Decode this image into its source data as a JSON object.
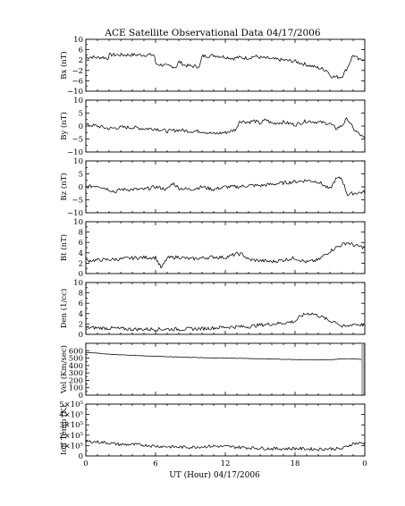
{
  "chart_data": {
    "type": "line",
    "title": "ACE Satellite Observational Data   04/17/2006",
    "xlabel": "UT (Hour)   04/17/2006",
    "x_ticks": [
      "0",
      "6",
      "12",
      "18",
      "0"
    ],
    "x_values": [
      0,
      6,
      12,
      18,
      24
    ],
    "xlim": [
      0,
      24
    ],
    "panels": [
      {
        "key": "bx",
        "ylabel": "Bx (nT)",
        "ylim": [
          -10,
          10
        ],
        "yticks": [
          -10,
          -6,
          -2,
          2,
          6,
          10
        ],
        "ytick_labels": [
          "−10",
          "−6",
          "−2",
          "2",
          "6",
          "10"
        ],
        "x": [
          0,
          0.5,
          1,
          1.5,
          1.9,
          2.0,
          3,
          4,
          5,
          5.9,
          6.0,
          6.5,
          7,
          7.8,
          8,
          8.5,
          9,
          9.8,
          10,
          11,
          12,
          12.8,
          13,
          14,
          14.5,
          15,
          16,
          17,
          18,
          19,
          20,
          20.8,
          21,
          21.4,
          22,
          22.5,
          23,
          23.5,
          24
        ],
        "y": [
          3,
          3.2,
          2.9,
          3.1,
          2.5,
          4,
          4,
          4,
          4,
          4,
          0.5,
          0.2,
          -0.3,
          -0.6,
          1.5,
          0,
          -0.3,
          -0.5,
          3.5,
          3.8,
          3.2,
          2.6,
          3,
          2.8,
          3.5,
          3,
          2.4,
          2,
          1.5,
          0.2,
          -1,
          -2,
          -4,
          -4.5,
          -4.5,
          -1,
          4,
          2,
          2.5
        ]
      },
      {
        "key": "by",
        "ylabel": "By (nT)",
        "ylim": [
          -10,
          10
        ],
        "yticks": [
          -10,
          -5,
          0,
          5,
          10
        ],
        "ytick_labels": [
          "−10",
          "−5",
          "0",
          "5",
          "10"
        ],
        "x": [
          0,
          1,
          2,
          3,
          4,
          5,
          6,
          7,
          8,
          9,
          10,
          10.5,
          11,
          12,
          12.5,
          13,
          13.2,
          14,
          14.5,
          15,
          15.5,
          16,
          17,
          18,
          19,
          20,
          21,
          21.5,
          22,
          22.5,
          23,
          23.5,
          24
        ],
        "y": [
          0.5,
          0,
          -1,
          -0.5,
          -0.5,
          -1,
          -1,
          -2,
          -1.5,
          -2,
          -2,
          -2.5,
          -3,
          -2.5,
          -2,
          -1,
          2,
          1.5,
          2,
          1,
          2.5,
          1,
          1.5,
          0.5,
          2,
          1.5,
          1,
          -1,
          0,
          3,
          -1,
          -3,
          -5
        ]
      },
      {
        "key": "bz",
        "ylabel": "Bz (nT)",
        "ylim": [
          -10,
          10
        ],
        "yticks": [
          -10,
          -5,
          0,
          5,
          10
        ],
        "ytick_labels": [
          "−10",
          "−5",
          "0",
          "5",
          "10"
        ],
        "x": [
          0,
          1,
          2,
          2.5,
          3,
          4,
          5,
          6,
          7,
          7.5,
          8,
          9,
          10,
          11,
          12,
          13,
          14,
          15,
          16,
          17,
          18,
          19,
          20,
          21,
          21.5,
          22,
          22.5,
          23,
          24
        ],
        "y": [
          0,
          0.5,
          -1,
          -2,
          -1,
          -1,
          -1,
          0,
          -1,
          1.5,
          -0.5,
          -1,
          0,
          -1,
          0,
          0,
          0.5,
          0.5,
          1,
          1.5,
          2,
          2.5,
          2,
          -1,
          3,
          3.5,
          -3,
          -2.5,
          -2
        ]
      },
      {
        "key": "bt",
        "ylabel": "Bt (nT)",
        "ylim": [
          0,
          10
        ],
        "yticks": [
          0,
          2,
          4,
          6,
          8,
          10
        ],
        "ytick_labels": [
          "0",
          "2",
          "4",
          "6",
          "8",
          "10"
        ],
        "x": [
          0,
          1,
          2,
          3,
          4,
          5,
          6,
          6.5,
          7,
          8,
          9,
          10,
          11,
          12,
          13,
          13.5,
          14,
          15,
          16,
          17,
          18,
          19,
          20,
          20.5,
          21,
          21.5,
          22,
          22.5,
          23,
          24
        ],
        "y": [
          2.5,
          2.6,
          2.7,
          2.8,
          3,
          3.1,
          3.1,
          1,
          3,
          3.2,
          2.8,
          3,
          3.2,
          3.1,
          3.8,
          3.7,
          2.7,
          2.5,
          2.3,
          2.6,
          3,
          2.2,
          2.6,
          3.5,
          4.3,
          5,
          5.5,
          6,
          5.5,
          5
        ]
      },
      {
        "key": "den",
        "ylabel": "Den (1/cc)",
        "ylim": [
          0,
          10
        ],
        "yticks": [
          0,
          2,
          4,
          6,
          8,
          10
        ],
        "ytick_labels": [
          "0",
          "2",
          "4",
          "6",
          "8",
          "10"
        ],
        "x": [
          0,
          2,
          4,
          6,
          8,
          10,
          12,
          14,
          15,
          16,
          17,
          18,
          18.5,
          19,
          19.5,
          20,
          20.5,
          21,
          21.5,
          22,
          22.5,
          23,
          24
        ],
        "y": [
          1.3,
          1.2,
          1,
          1,
          1,
          1.1,
          1.4,
          1.5,
          1.8,
          2,
          2.2,
          2.5,
          3.5,
          4,
          4,
          3.6,
          3.2,
          2.5,
          2.5,
          1.5,
          1.5,
          2,
          1.8
        ]
      },
      {
        "key": "vel",
        "ylabel": "Vel (Km/sec)",
        "ylim": [
          0,
          700
        ],
        "yticks": [
          0,
          100,
          200,
          300,
          400,
          500,
          600
        ],
        "ytick_labels": [
          "0",
          "100",
          "200",
          "300",
          "400",
          "500",
          "600"
        ],
        "x": [
          0,
          1,
          2,
          4,
          6,
          8,
          10,
          12,
          14,
          16,
          18,
          20,
          21,
          22,
          23,
          24
        ],
        "y": [
          575,
          568,
          552,
          538,
          525,
          515,
          505,
          500,
          495,
          488,
          480,
          475,
          478,
          490,
          490,
          480
        ]
      },
      {
        "key": "temp",
        "ylabel": "Ion Temp (K)",
        "ylim": [
          0,
          500000
        ],
        "yticks": [
          0,
          100000,
          200000,
          300000,
          400000,
          500000
        ],
        "ytick_labels": [
          "0",
          "1×10⁵",
          "2×10⁵",
          "3×10⁵",
          "4×10⁵",
          "5×10⁵"
        ],
        "x": [
          0,
          1,
          2,
          3,
          4,
          5,
          6,
          7,
          8,
          9,
          10,
          11,
          12,
          13,
          14,
          15,
          16,
          17,
          18,
          19,
          20,
          21,
          22,
          23,
          24
        ],
        "y": [
          140000,
          135000,
          125000,
          110000,
          110000,
          105000,
          95000,
          90000,
          85000,
          85000,
          90000,
          95000,
          90000,
          85000,
          80000,
          75000,
          70000,
          70000,
          72000,
          68000,
          65000,
          70000,
          68000,
          120000,
          125000
        ]
      }
    ]
  }
}
